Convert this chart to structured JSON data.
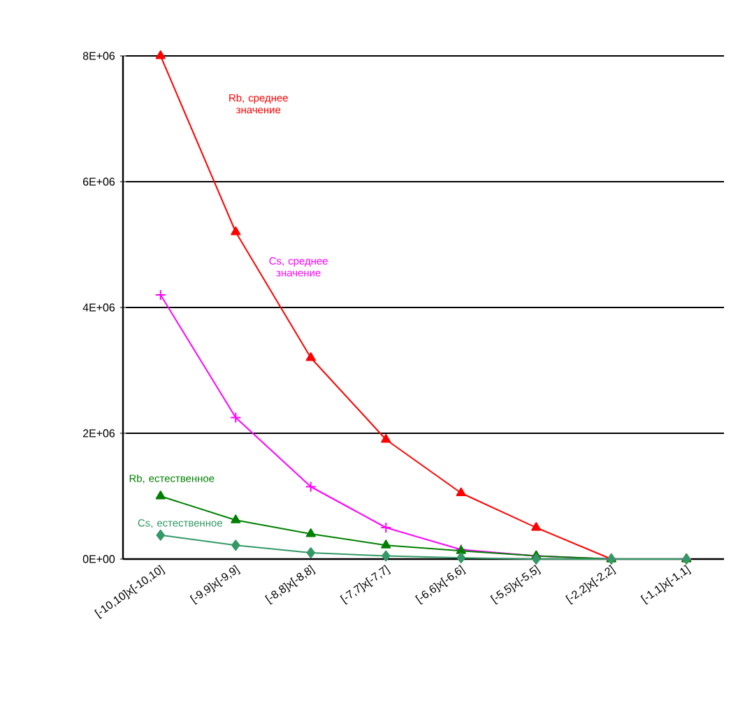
{
  "chart_data": {
    "type": "line",
    "categories": [
      "[-10,10]x[-10,10]",
      "[-9,9]x[-9,9]",
      "[-8,8]x[-8,8]",
      "[-7,7]x[-7,7]",
      "[-6,6]x[-6,6]",
      "[-5,5]x[-5,5]",
      "[-2,2]x[-2,2]",
      "[-1,1]x[-1,1]"
    ],
    "series": [
      {
        "name": "Rb, среднее значение",
        "color": "#ff0000",
        "marker": "triangle",
        "values": [
          8000000,
          5200000,
          3200000,
          1900000,
          1050000,
          500000,
          0,
          0
        ]
      },
      {
        "name": "Cs, среднее значение",
        "color": "#ff00ff",
        "marker": "cross",
        "values": [
          4200000,
          2250000,
          1150000,
          500000,
          150000,
          50000,
          0,
          0
        ]
      },
      {
        "name": "Rb, естественное",
        "color": "#008000",
        "marker": "triangle",
        "values": [
          1000000,
          620000,
          400000,
          220000,
          130000,
          50000,
          0,
          0
        ]
      },
      {
        "name": "Cs, естественное",
        "color": "#339966",
        "marker": "diamond",
        "values": [
          380000,
          220000,
          100000,
          50000,
          20000,
          0,
          0,
          0
        ]
      }
    ],
    "ylim": [
      0,
      8000000
    ],
    "yticks": [
      {
        "value": 0,
        "label": "0E+00"
      },
      {
        "value": 2000000,
        "label": "2E+06"
      },
      {
        "value": 4000000,
        "label": "4E+06"
      },
      {
        "value": 6000000,
        "label": "6E+06"
      },
      {
        "value": 8000000,
        "label": "8E+06"
      }
    ],
    "grid": "y"
  }
}
